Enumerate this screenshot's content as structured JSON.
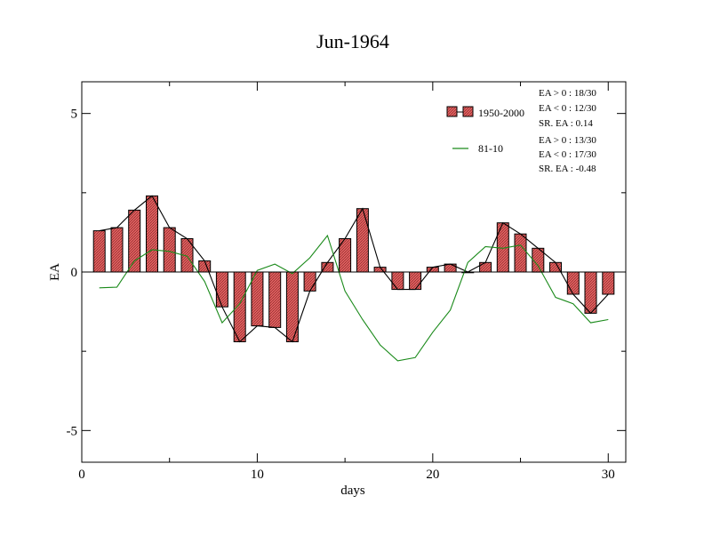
{
  "chart_data": {
    "type": "bar",
    "title": "Jun-1964",
    "xlabel": "days",
    "ylabel": "EA",
    "xlim": [
      0,
      31
    ],
    "ylim": [
      -6,
      6
    ],
    "xticks": [
      0,
      10,
      20,
      30
    ],
    "xtick_labels": [
      "0",
      "10",
      "20",
      "30"
    ],
    "yticks": [
      -5,
      0,
      5
    ],
    "ytick_labels": [
      "-5",
      "0",
      "5"
    ],
    "grid": false,
    "legend_position": "top-right",
    "x": [
      1,
      2,
      3,
      4,
      5,
      6,
      7,
      8,
      9,
      10,
      11,
      12,
      13,
      14,
      15,
      16,
      17,
      18,
      19,
      20,
      21,
      22,
      23,
      24,
      25,
      26,
      27,
      28,
      29,
      30
    ],
    "series": [
      {
        "name": "1950-2000",
        "style": "bars-with-line",
        "bar_color": "#e06060",
        "line_color": "#000000",
        "values": [
          1.3,
          1.4,
          1.95,
          2.4,
          1.4,
          1.05,
          0.35,
          -1.1,
          -2.2,
          -1.7,
          -1.75,
          -2.2,
          -0.6,
          0.3,
          1.05,
          2.0,
          0.15,
          -0.55,
          -0.55,
          0.15,
          0.25,
          0.0,
          0.3,
          1.55,
          1.2,
          0.75,
          0.3,
          -0.7,
          -1.3,
          -0.7
        ]
      },
      {
        "name": "81-10",
        "style": "line",
        "line_color": "#1a8a1a",
        "values": [
          -0.5,
          -0.48,
          0.35,
          0.7,
          0.65,
          0.5,
          -0.3,
          -1.6,
          -1.0,
          0.05,
          0.25,
          -0.05,
          0.45,
          1.15,
          -0.6,
          -1.5,
          -2.3,
          -2.8,
          -2.7,
          -1.9,
          -1.2,
          0.3,
          0.8,
          0.75,
          0.85,
          0.2,
          -0.8,
          -1.0,
          -1.6,
          -1.5
        ]
      }
    ],
    "annotations": {
      "group1": [
        "EA > 0 : 18/30",
        "EA < 0 : 12/30",
        "SR. EA :  0.14"
      ],
      "group2": [
        "EA > 0 : 13/30",
        "EA < 0 : 17/30",
        "SR. EA : -0.48"
      ]
    }
  }
}
